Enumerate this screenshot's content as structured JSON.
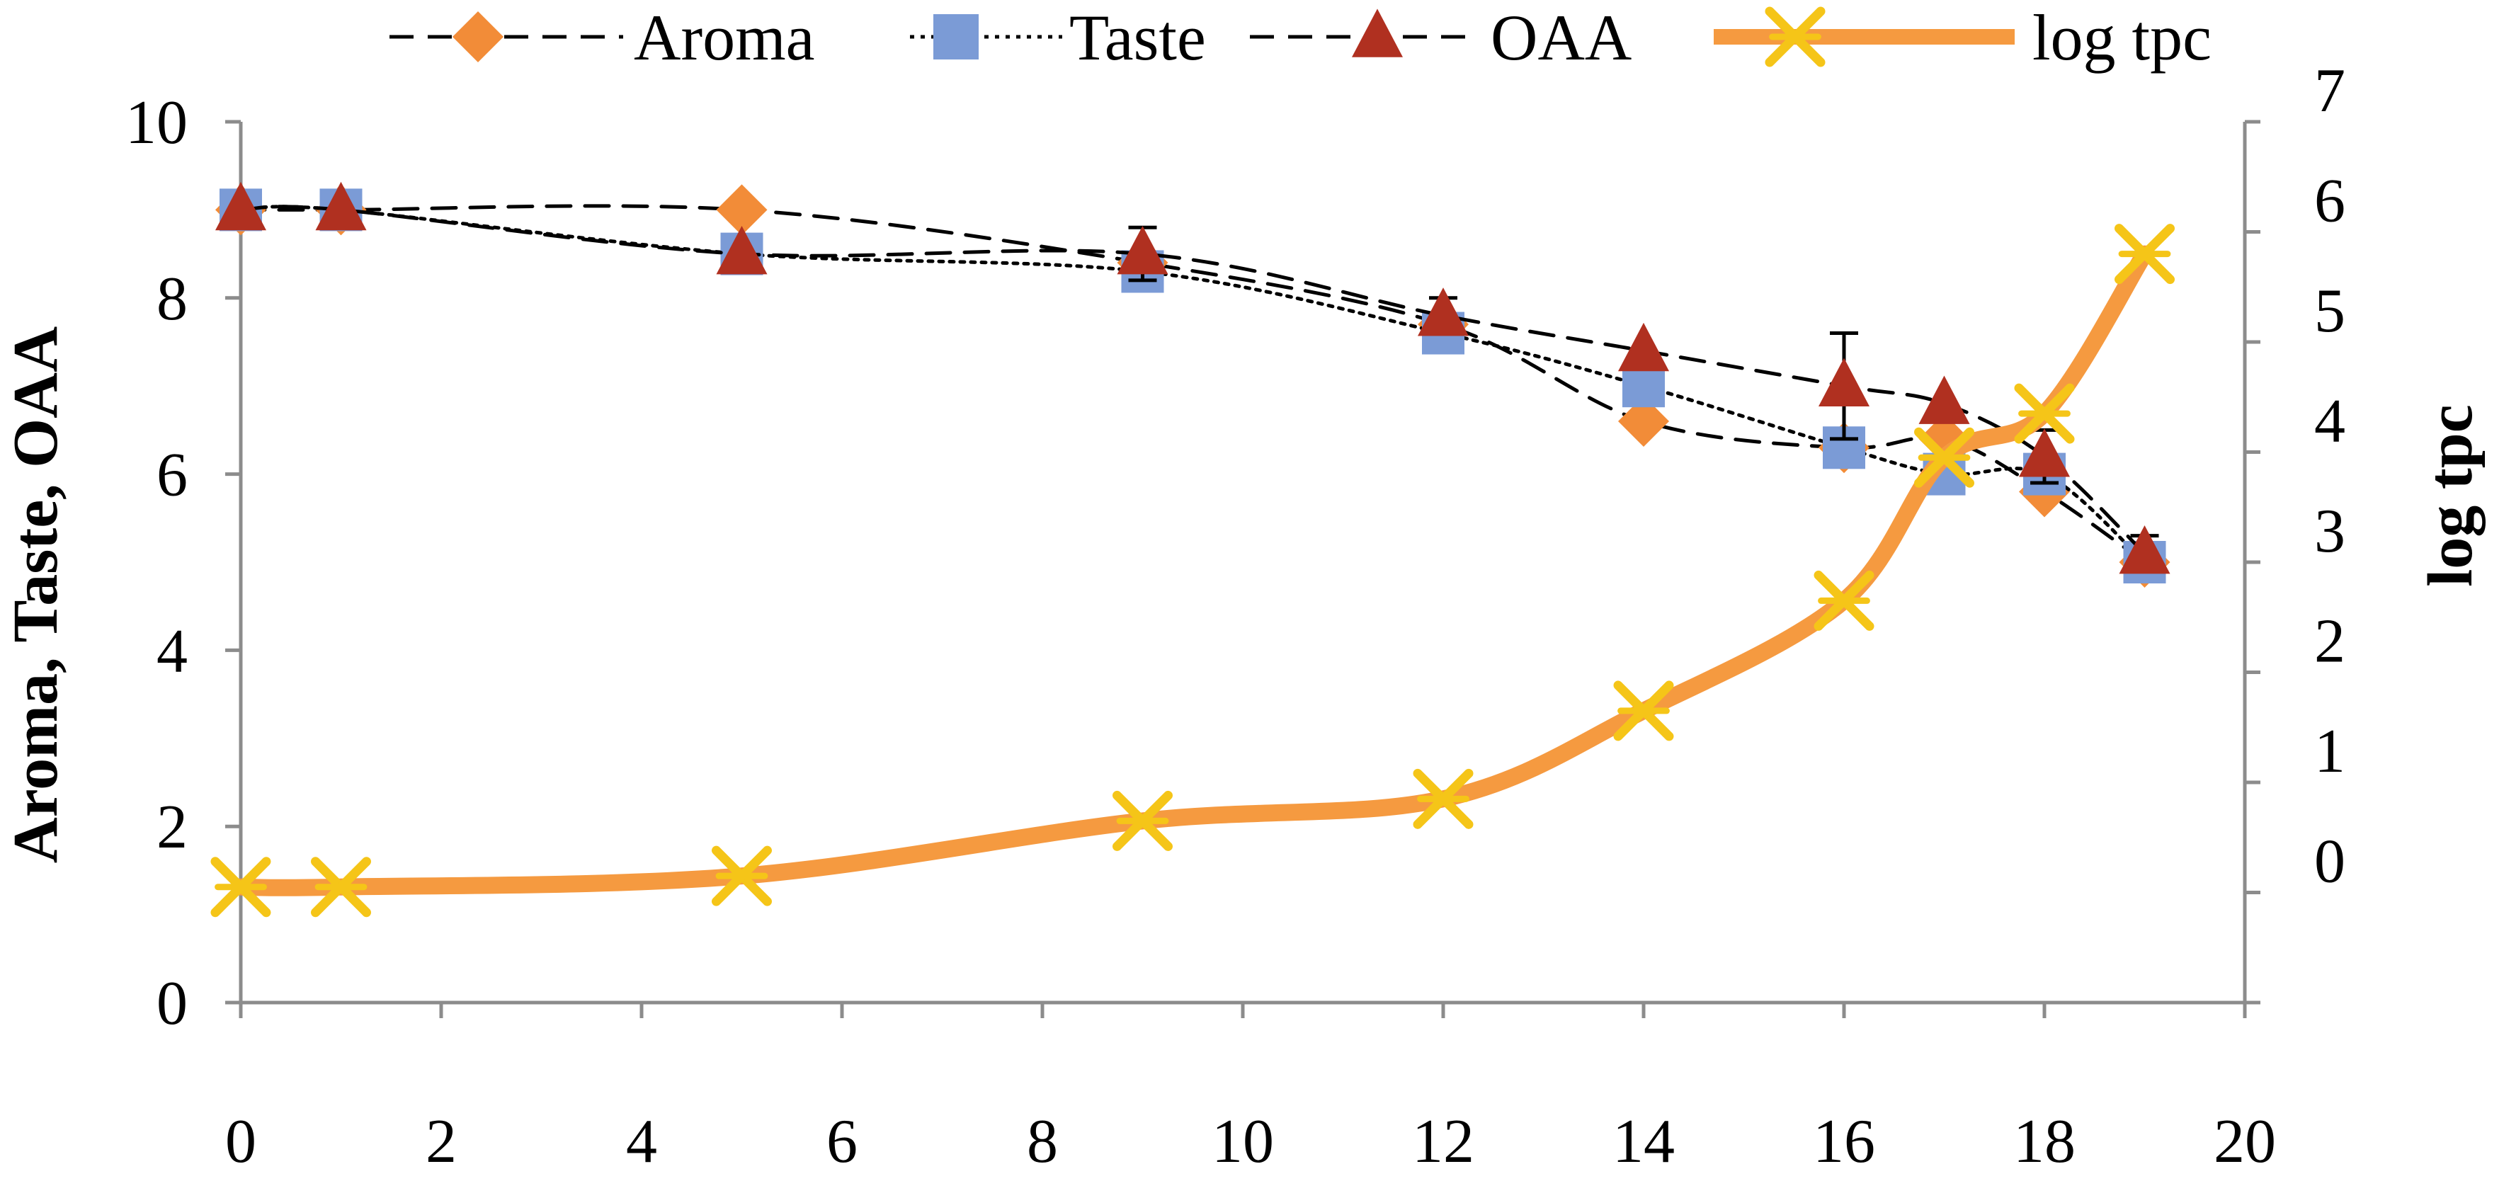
{
  "chart_data": {
    "type": "line",
    "title": "",
    "xlabel": "",
    "ylabel": "Aroma,  Taste,  OAA",
    "y2label": "log tpc",
    "xlim": [
      0,
      20
    ],
    "ylim": [
      0,
      10
    ],
    "y2lim": [
      -1,
      7
    ],
    "xticks": [
      "0",
      "2",
      "4",
      "6",
      "8",
      "10",
      "12",
      "14",
      "16",
      "18",
      "20"
    ],
    "yticks": [
      "0",
      "2",
      "4",
      "6",
      "8",
      "10"
    ],
    "y2ticks": [
      "0",
      "1",
      "2",
      "3",
      "4",
      "5",
      "6",
      "7"
    ],
    "legend_position": "top",
    "series": [
      {
        "name": "Aroma",
        "axis": "left",
        "marker": "diamond",
        "color": "#f28c38",
        "line_color": "#000000",
        "dash": "dashed",
        "x": [
          0,
          1,
          5,
          9,
          12,
          14,
          16,
          17,
          18,
          19
        ],
        "y": [
          9.0,
          9.0,
          9.0,
          8.4,
          7.7,
          6.6,
          6.3,
          6.4,
          5.8,
          5.0
        ]
      },
      {
        "name": "Taste",
        "axis": "left",
        "marker": "square",
        "color": "#7b9bd6",
        "line_color": "#000000",
        "dash": "dotted",
        "x": [
          0,
          1,
          5,
          9,
          12,
          14,
          16,
          17,
          18,
          19
        ],
        "y": [
          9.0,
          9.0,
          8.5,
          8.3,
          7.6,
          7.0,
          6.3,
          6.0,
          6.0,
          5.0
        ]
      },
      {
        "name": "OAA",
        "axis": "left",
        "marker": "triangle",
        "color": "#b03020",
        "line_color": "#000000",
        "dash": "dashed",
        "x": [
          0,
          1,
          5,
          9,
          12,
          14,
          16,
          17,
          18,
          19
        ],
        "y": [
          9.0,
          9.0,
          8.5,
          8.5,
          7.8,
          7.4,
          7.0,
          6.8,
          6.2,
          5.1
        ],
        "error": [
          0,
          0,
          0,
          0.3,
          0.2,
          0.0,
          0.6,
          0,
          0.3,
          0.2
        ]
      },
      {
        "name": "log tpc",
        "axis": "right",
        "marker": "x-star",
        "color": "#f59a40",
        "marker_color": "#f5c518",
        "dash": "solid",
        "x": [
          0,
          1,
          5,
          9,
          12,
          14,
          16,
          17,
          18,
          19
        ],
        "y": [
          0.05,
          0.05,
          0.15,
          0.65,
          0.85,
          1.65,
          2.65,
          3.95,
          4.35,
          5.8
        ]
      }
    ]
  }
}
